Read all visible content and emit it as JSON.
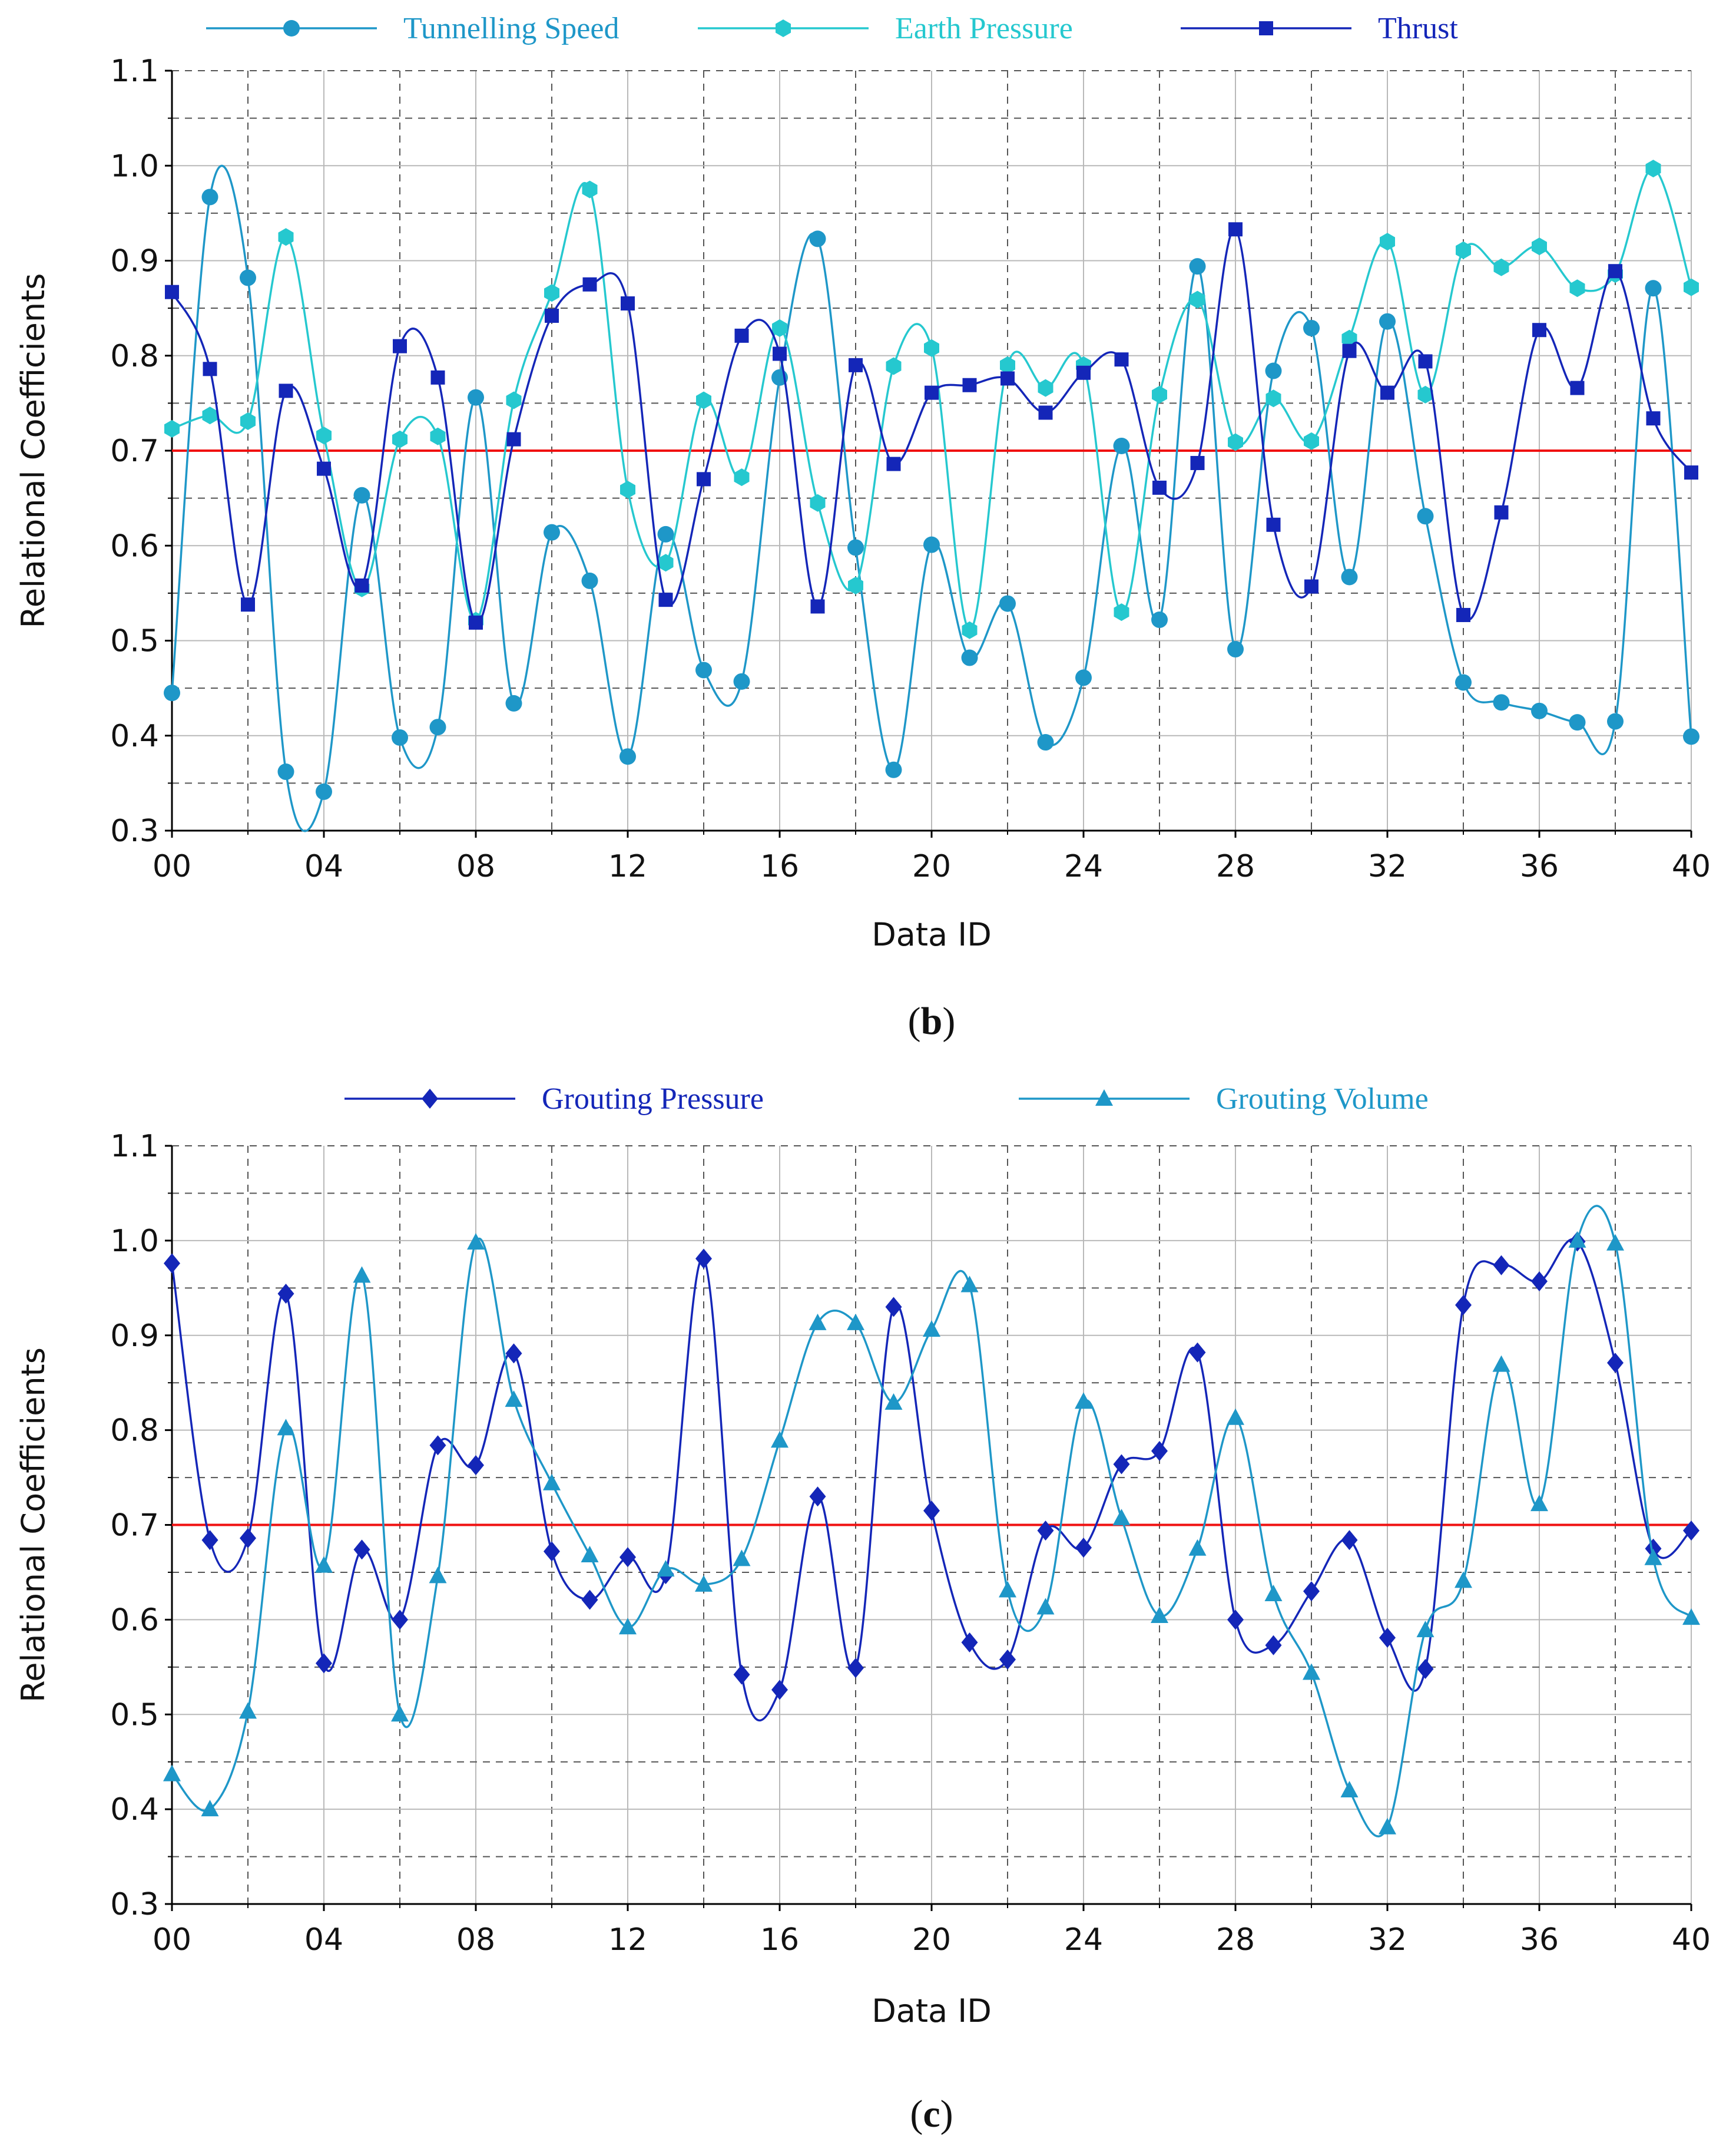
{
  "chart_data": [
    {
      "type": "line",
      "panel_label": "b",
      "ylabel": "Relational Coefficients",
      "xlabel": "Data ID",
      "xlim": [
        0,
        40
      ],
      "ylim": [
        0.3,
        1.1
      ],
      "xticks": [
        "00",
        "04",
        "08",
        "12",
        "16",
        "20",
        "24",
        "28",
        "32",
        "36",
        "40"
      ],
      "yticks": [
        "0.3",
        "0.4",
        "0.5",
        "0.6",
        "0.7",
        "0.8",
        "0.9",
        "1.0",
        "1.1"
      ],
      "threshold": 0.7,
      "x": [
        0,
        1,
        2,
        3,
        4,
        5,
        6,
        7,
        8,
        9,
        10,
        11,
        12,
        13,
        14,
        15,
        16,
        17,
        18,
        19,
        20,
        21,
        22,
        23,
        24,
        25,
        26,
        27,
        28,
        29,
        30,
        31,
        32,
        33,
        34,
        35,
        36,
        37,
        38,
        39,
        40
      ],
      "series": [
        {
          "name": "Tunnelling Speed",
          "marker": "circle",
          "color": "#1e97c8",
          "values": [
            0.445,
            0.967,
            0.882,
            0.362,
            0.341,
            0.653,
            0.398,
            0.409,
            0.756,
            0.434,
            0.614,
            0.563,
            0.378,
            0.612,
            0.469,
            0.457,
            0.777,
            0.923,
            0.598,
            0.364,
            0.601,
            0.482,
            0.539,
            0.393,
            0.461,
            0.705,
            0.522,
            0.894,
            0.491,
            0.784,
            0.829,
            0.567,
            0.836,
            0.631,
            0.456,
            0.435,
            0.426,
            0.414,
            0.415,
            0.871,
            0.399
          ]
        },
        {
          "name": "Earth Pressure",
          "marker": "hexagon",
          "color": "#25c8cf",
          "values": [
            0.723,
            0.737,
            0.731,
            0.925,
            0.716,
            0.555,
            0.712,
            0.715,
            0.521,
            0.753,
            0.866,
            0.975,
            0.659,
            0.582,
            0.753,
            0.672,
            0.829,
            0.645,
            0.558,
            0.789,
            0.808,
            0.511,
            0.79,
            0.766,
            0.79,
            0.53,
            0.759,
            0.859,
            0.709,
            0.755,
            0.71,
            0.818,
            0.92,
            0.759,
            0.911,
            0.893,
            0.915,
            0.871,
            0.886,
            0.997,
            0.872
          ]
        },
        {
          "name": "Thrust",
          "marker": "square",
          "color": "#1426b8",
          "values": [
            0.867,
            0.786,
            0.538,
            0.763,
            0.681,
            0.558,
            0.81,
            0.777,
            0.519,
            0.712,
            0.842,
            0.875,
            0.855,
            0.543,
            0.67,
            0.821,
            0.802,
            0.536,
            0.79,
            0.686,
            0.761,
            0.769,
            0.776,
            0.74,
            0.782,
            0.796,
            0.661,
            0.687,
            0.933,
            0.622,
            0.557,
            0.805,
            0.761,
            0.794,
            0.527,
            0.635,
            0.827,
            0.766,
            0.889,
            0.734,
            0.677
          ]
        }
      ]
    },
    {
      "type": "line",
      "panel_label": "c",
      "ylabel": "Relational Coefficients",
      "xlabel": "Data ID",
      "xlim": [
        0,
        40
      ],
      "ylim": [
        0.3,
        1.1
      ],
      "xticks": [
        "00",
        "04",
        "08",
        "12",
        "16",
        "20",
        "24",
        "28",
        "32",
        "36",
        "40"
      ],
      "yticks": [
        "0.3",
        "0.4",
        "0.5",
        "0.6",
        "0.7",
        "0.8",
        "0.9",
        "1.0",
        "1.1"
      ],
      "threshold": 0.7,
      "x": [
        0,
        1,
        2,
        3,
        4,
        5,
        6,
        7,
        8,
        9,
        10,
        11,
        12,
        13,
        14,
        15,
        16,
        17,
        18,
        19,
        20,
        21,
        22,
        23,
        24,
        25,
        26,
        27,
        28,
        29,
        30,
        31,
        32,
        33,
        34,
        35,
        36,
        37,
        38,
        39,
        40
      ],
      "series": [
        {
          "name": "Grouting Pressure",
          "marker": "diamond",
          "color": "#1426b8",
          "values": [
            0.976,
            0.684,
            0.686,
            0.944,
            0.554,
            0.674,
            0.6,
            0.784,
            0.763,
            0.881,
            0.672,
            0.621,
            0.666,
            0.648,
            0.981,
            0.542,
            0.526,
            0.73,
            0.549,
            0.93,
            0.715,
            0.576,
            0.558,
            0.694,
            0.676,
            0.764,
            0.778,
            0.882,
            0.6,
            0.573,
            0.63,
            0.684,
            0.581,
            0.548,
            0.932,
            0.974,
            0.957,
            0.999,
            0.871,
            0.675,
            0.694
          ]
        },
        {
          "name": "Grouting Volume",
          "marker": "triangle",
          "color": "#1e97c8",
          "values": [
            0.437,
            0.4,
            0.503,
            0.802,
            0.657,
            0.963,
            0.5,
            0.646,
            0.998,
            0.832,
            0.744,
            0.668,
            0.592,
            0.653,
            0.637,
            0.664,
            0.789,
            0.913,
            0.913,
            0.829,
            0.906,
            0.953,
            0.631,
            0.613,
            0.83,
            0.707,
            0.604,
            0.675,
            0.813,
            0.627,
            0.544,
            0.42,
            0.381,
            0.589,
            0.641,
            0.869,
            0.722,
            1.0,
            0.997,
            0.665,
            0.602
          ]
        }
      ]
    }
  ]
}
